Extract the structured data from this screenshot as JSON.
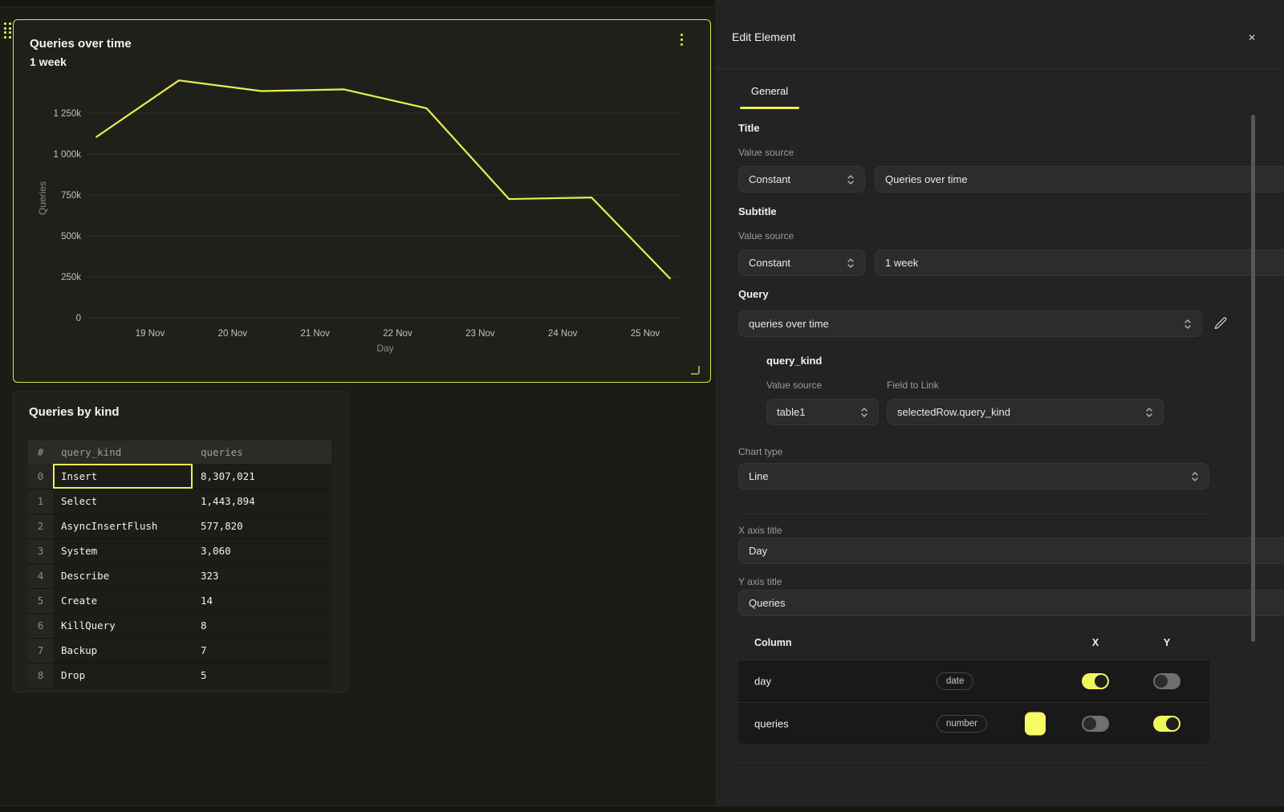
{
  "colors": {
    "accent": "#EFF455",
    "line": "#E8EE52",
    "toggle_on": "#F1F65B",
    "swatch": "#F7FB66",
    "selected_panel_border": "#DBE34C"
  },
  "chart_data": {
    "type": "line",
    "title": "Queries over time",
    "subtitle": "1 week",
    "xlabel": "Day",
    "ylabel": "Queries",
    "x_ticks": [
      {
        "day": 19,
        "label": "19 Nov"
      },
      {
        "day": 20,
        "label": "20 Nov"
      },
      {
        "day": 21,
        "label": "21 Nov"
      },
      {
        "day": 22,
        "label": "22 Nov"
      },
      {
        "day": 23,
        "label": "23 Nov"
      },
      {
        "day": 24,
        "label": "24 Nov"
      },
      {
        "day": 25,
        "label": "25 Nov"
      }
    ],
    "y_ticks": [
      {
        "value": 0,
        "label": "0"
      },
      {
        "value": 250000,
        "label": "250k"
      },
      {
        "value": 500000,
        "label": "500k"
      },
      {
        "value": 750000,
        "label": "750k"
      },
      {
        "value": 1000000,
        "label": "1 000k"
      },
      {
        "value": 1250000,
        "label": "1 250k"
      }
    ],
    "ylim": [
      0,
      1500000
    ],
    "xlim_days": [
      18.2,
      25.5
    ],
    "grid": "horizontal",
    "legend": "none",
    "series": [
      {
        "name": "queries",
        "color": "#E8EE52",
        "points": [
          {
            "day": 18.35,
            "value": 1105000
          },
          {
            "day": 19.35,
            "value": 1450000
          },
          {
            "day": 20.35,
            "value": 1385000
          },
          {
            "day": 21.35,
            "value": 1395000
          },
          {
            "day": 22.35,
            "value": 1280000
          },
          {
            "day": 23.35,
            "value": 725000
          },
          {
            "day": 24.35,
            "value": 735000
          },
          {
            "day": 25.3,
            "value": 240000
          }
        ]
      }
    ]
  },
  "dashboard": {
    "chart_panel": {
      "title": "Queries over time",
      "subtitle": "1 week"
    },
    "table_panel": {
      "title": "Queries by kind",
      "columns": [
        "#",
        "query_kind",
        "queries"
      ],
      "rows": [
        [
          "0",
          "Insert",
          "8,307,021"
        ],
        [
          "1",
          "Select",
          "1,443,894"
        ],
        [
          "2",
          "AsyncInsertFlush",
          "577,820"
        ],
        [
          "3",
          "System",
          "3,060"
        ],
        [
          "4",
          "Describe",
          "323"
        ],
        [
          "5",
          "Create",
          "14"
        ],
        [
          "6",
          "KillQuery",
          "8"
        ],
        [
          "7",
          "Backup",
          "7"
        ],
        [
          "8",
          "Drop",
          "5"
        ]
      ],
      "selected": {
        "row_index": 0,
        "column_index": 1
      }
    }
  },
  "edit_panel": {
    "title": "Edit Element",
    "close": "✕",
    "tab": "General",
    "title_section": {
      "heading": "Title",
      "value_source_label": "Value source",
      "source": "Constant",
      "value": "Queries over time"
    },
    "subtitle_section": {
      "heading": "Subtitle",
      "value_source_label": "Value source",
      "source": "Constant",
      "value": "1 week"
    },
    "query_section": {
      "heading": "Query",
      "value": "queries over time"
    },
    "query_kind_section": {
      "heading": "query_kind",
      "value_source_label": "Value source",
      "field_to_link_label": "Field to Link",
      "source": "table1",
      "field": "selectedRow.query_kind"
    },
    "chart_type": {
      "label": "Chart type",
      "value": "Line"
    },
    "x_axis": {
      "label": "X axis title",
      "value": "Day"
    },
    "y_axis": {
      "label": "Y axis title",
      "value": "Queries"
    },
    "columns_table": {
      "column_header": "Column",
      "x_header": "X",
      "y_header": "Y",
      "rows": [
        {
          "name": "day",
          "badge": "date",
          "swatch": null,
          "x_on": true,
          "y_on": false
        },
        {
          "name": "queries",
          "badge": "number",
          "swatch": "#F7FB66",
          "x_on": false,
          "y_on": true
        }
      ]
    }
  }
}
